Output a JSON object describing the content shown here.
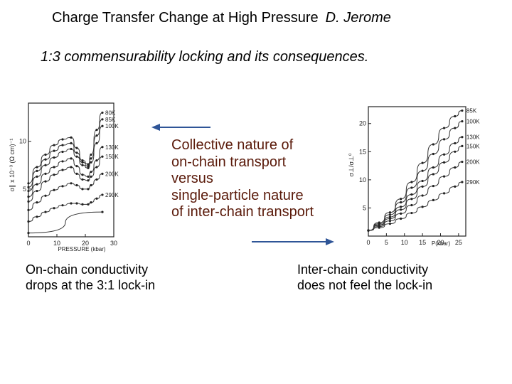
{
  "slide": {
    "title": "Charge Transfer Change at High Pressure",
    "author": "D. Jerome",
    "subtitle": "1:3 commensurability locking  and its consequences.",
    "center_lines": [
      "Collective nature of",
      "on-chain transport",
      "versus",
      "single-particle nature",
      "of inter-chain transport"
    ],
    "caption_left": [
      "On-chain conductivity",
      "drops at the 3:1 lock-in"
    ],
    "caption_right": [
      "Inter-chain conductivity",
      "does not feel the lock-in"
    ]
  },
  "chart_data": [
    {
      "type": "line",
      "xlabel": "PRESSURE    (kbar)",
      "ylabel": "σ∥ x 10⁻³ (Ω cm)⁻¹",
      "x_ticks": [
        "0",
        "10",
        "20",
        "30"
      ],
      "y_ticks": [
        "5",
        "10"
      ],
      "xlim": [
        0,
        30
      ],
      "ylim": [
        0,
        14
      ],
      "series": [
        {
          "name": "80K",
          "x": [
            0,
            3,
            6,
            9,
            12,
            15,
            17,
            19,
            21,
            22,
            24,
            26
          ],
          "y": [
            5.6,
            7.3,
            8.6,
            9.6,
            10.2,
            10.4,
            9.3,
            8.0,
            7.6,
            8.6,
            11.2,
            13.0
          ]
        },
        {
          "name": "85K",
          "x": [
            0,
            3,
            6,
            9,
            12,
            15,
            17,
            19,
            21,
            22,
            24,
            26
          ],
          "y": [
            5.2,
            6.9,
            8.1,
            9.0,
            9.6,
            9.8,
            8.8,
            7.8,
            7.4,
            8.2,
            10.6,
            12.3
          ]
        },
        {
          "name": "100K",
          "x": [
            0,
            3,
            6,
            9,
            12,
            15,
            17,
            19,
            21,
            22,
            24,
            26
          ],
          "y": [
            4.8,
            6.3,
            7.5,
            8.3,
            8.9,
            9.2,
            8.4,
            7.5,
            7.2,
            7.8,
            9.8,
            11.6
          ]
        },
        {
          "name": "130K",
          "x": [
            0,
            3,
            6,
            9,
            12,
            15,
            17,
            19,
            21,
            22,
            24,
            26
          ],
          "y": [
            4.2,
            5.5,
            6.6,
            7.3,
            7.9,
            8.2,
            7.4,
            6.5,
            6.3,
            6.8,
            8.0,
            9.4
          ]
        },
        {
          "name": "150K",
          "x": [
            0,
            3,
            6,
            9,
            12,
            15,
            17,
            19,
            21,
            22,
            24,
            26
          ],
          "y": [
            3.7,
            4.8,
            5.8,
            6.5,
            7.0,
            7.3,
            6.6,
            6.0,
            5.9,
            6.3,
            7.3,
            8.4
          ]
        },
        {
          "name": "200K",
          "x": [
            0,
            3,
            6,
            9,
            12,
            15,
            17,
            19,
            21,
            22,
            24,
            26
          ],
          "y": [
            2.8,
            3.6,
            4.3,
            4.9,
            5.3,
            5.6,
            5.4,
            5.0,
            5.0,
            5.4,
            6.0,
            6.6
          ]
        },
        {
          "name": "290K",
          "x": [
            0,
            3,
            6,
            9,
            12,
            15,
            17,
            19,
            21,
            22,
            24,
            26
          ],
          "y": [
            1.6,
            2.1,
            2.6,
            3.0,
            3.3,
            3.5,
            3.5,
            3.4,
            3.4,
            3.6,
            4.0,
            4.4
          ]
        },
        {
          "name": "",
          "x": [
            0,
            26
          ],
          "y": [
            0.4,
            2.6
          ]
        }
      ]
    },
    {
      "type": "line",
      "xlabel": "P(kbar)",
      "ylabel": "σ⊥/σ⊥⁰",
      "x_ticks": [
        "0",
        "5",
        "10",
        "15",
        "20",
        "25"
      ],
      "y_ticks": [
        "5",
        "10",
        "15",
        "20"
      ],
      "xlim": [
        0,
        27
      ],
      "ylim": [
        0,
        23
      ],
      "series": [
        {
          "name": "85K",
          "x": [
            0,
            3,
            6,
            9,
            12,
            15,
            18,
            21,
            24,
            26
          ],
          "y": [
            1,
            2.4,
            4.2,
            6.6,
            9.6,
            13.0,
            16.3,
            19.2,
            21.3,
            22.3
          ]
        },
        {
          "name": "100K",
          "x": [
            0,
            3,
            6,
            9,
            12,
            15,
            18,
            21,
            24,
            26
          ],
          "y": [
            1,
            2.2,
            3.8,
            6.0,
            8.6,
            11.6,
            14.6,
            17.2,
            19.2,
            20.4
          ]
        },
        {
          "name": "130K",
          "x": [
            0,
            3,
            6,
            9,
            12,
            15,
            18,
            21,
            24,
            26
          ],
          "y": [
            1,
            2.0,
            3.4,
            5.2,
            7.4,
            9.8,
            12.2,
            14.5,
            16.5,
            17.6
          ]
        },
        {
          "name": "150K",
          "x": [
            0,
            3,
            6,
            9,
            12,
            15,
            18,
            21,
            24,
            26
          ],
          "y": [
            1,
            1.9,
            3.1,
            4.7,
            6.6,
            8.8,
            11.0,
            13.1,
            15.0,
            16.0
          ]
        },
        {
          "name": "200K",
          "x": [
            0,
            3,
            6,
            9,
            12,
            15,
            18,
            21,
            24,
            26
          ],
          "y": [
            1,
            1.7,
            2.7,
            4.0,
            5.5,
            7.2,
            8.9,
            10.6,
            12.2,
            13.2
          ]
        },
        {
          "name": "290K",
          "x": [
            0,
            3,
            6,
            9,
            12,
            15,
            18,
            21,
            24,
            26
          ],
          "y": [
            1,
            1.5,
            2.2,
            3.1,
            4.1,
            5.2,
            6.4,
            7.6,
            8.8,
            9.6
          ]
        }
      ]
    }
  ]
}
